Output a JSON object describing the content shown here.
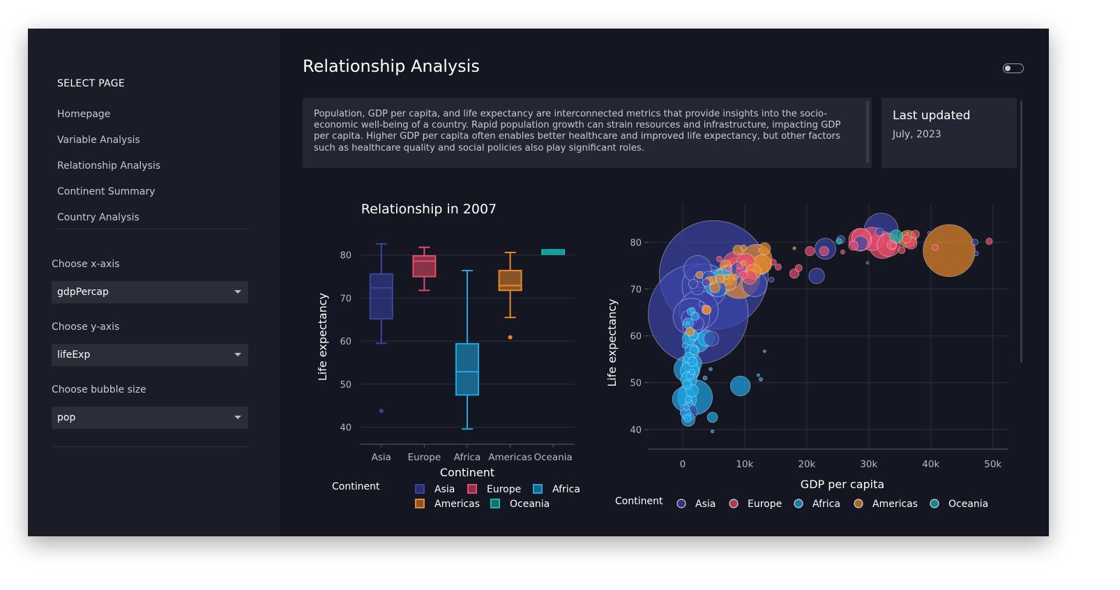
{
  "sidebar": {
    "title": "SELECT PAGE",
    "items": [
      "Homepage",
      "Variable Analysis",
      "Relationship Analysis",
      "Continent Summary",
      "Country Analysis"
    ],
    "x_label": "Choose x-axis",
    "x_value": "gdpPercap",
    "y_label": "Choose y-axis",
    "y_value": "lifeExp",
    "size_label": "Choose bubble size",
    "size_value": "pop"
  },
  "main": {
    "title": "Relationship Analysis",
    "description": "Population, GDP per capita, and life expectancy are interconnected metrics that provide insights into the socio-economic well-being of a country. Rapid population growth can strain resources and infrastructure, impacting GDP per capita. Higher GDP per capita often enables better healthcare and improved life expectancy, but other factors such as healthcare quality and social policies also play significant roles.",
    "updated_title": "Last updated",
    "updated_date": "July, 2023"
  },
  "colors": {
    "Asia": "#3b44a6",
    "Europe": "#e84b6b",
    "Africa": "#1ea6e6",
    "Americas": "#e88a2b",
    "Oceania": "#17b8b0"
  },
  "chart_data": [
    {
      "type": "box",
      "title": "Relationship in 2007",
      "xlabel": "Continent",
      "ylabel": "Life expectancy",
      "ylim": [
        38,
        84
      ],
      "yticks": [
        40,
        50,
        60,
        70,
        80
      ],
      "legend_title": "Continent",
      "series": [
        {
          "name": "Asia",
          "min": 59.5,
          "q1": 65.2,
          "median": 72.4,
          "q3": 75.6,
          "max": 82.6,
          "outliers": [
            43.8
          ]
        },
        {
          "name": "Europe",
          "min": 71.8,
          "q1": 75.0,
          "median": 78.6,
          "q3": 79.8,
          "max": 81.8,
          "outliers": []
        },
        {
          "name": "Africa",
          "min": 39.6,
          "q1": 47.5,
          "median": 52.9,
          "q3": 59.4,
          "max": 76.4,
          "outliers": []
        },
        {
          "name": "Americas",
          "min": 65.5,
          "q1": 71.8,
          "median": 72.9,
          "q3": 76.4,
          "max": 80.6,
          "outliers": [
            60.9
          ]
        },
        {
          "name": "Oceania",
          "min": 80.2,
          "q1": 80.2,
          "median": 80.7,
          "q3": 81.2,
          "max": 81.2,
          "outliers": []
        }
      ]
    },
    {
      "type": "scatter",
      "xlabel": "GDP per capita",
      "ylabel": "Life expectancy",
      "xlim": [
        -5500,
        52500
      ],
      "ylim": [
        37,
        86
      ],
      "xticks": [
        0,
        10000,
        20000,
        30000,
        40000,
        50000
      ],
      "xtick_labels": [
        "0",
        "10k",
        "20k",
        "30k",
        "40k",
        "50k"
      ],
      "yticks": [
        40,
        50,
        60,
        70,
        80
      ],
      "legend_title": "Continent",
      "points": [
        {
          "c": "Asia",
          "x": 5000,
          "y": 73.0,
          "pop": 1318
        },
        {
          "c": "Asia",
          "x": 2500,
          "y": 64.7,
          "pop": 1110
        },
        {
          "c": "Asia",
          "x": 32000,
          "y": 82.6,
          "pop": 127
        },
        {
          "c": "Asia",
          "x": 3500,
          "y": 70.6,
          "pop": 223
        },
        {
          "c": "Asia",
          "x": 1400,
          "y": 64.1,
          "pop": 150
        },
        {
          "c": "Asia",
          "x": 2600,
          "y": 65.5,
          "pop": 169
        },
        {
          "c": "Asia",
          "x": 23000,
          "y": 78.6,
          "pop": 49
        },
        {
          "c": "Asia",
          "x": 11600,
          "y": 71.0,
          "pop": 69
        },
        {
          "c": "Asia",
          "x": 7500,
          "y": 72.5,
          "pop": 65
        },
        {
          "c": "Asia",
          "x": 4600,
          "y": 59.4,
          "pop": 25
        },
        {
          "c": "Asia",
          "x": 21600,
          "y": 72.8,
          "pop": 27
        },
        {
          "c": "Asia",
          "x": 9000,
          "y": 74.2,
          "pop": 24
        },
        {
          "c": "Asia",
          "x": 2400,
          "y": 74.2,
          "pop": 85
        },
        {
          "c": "Asia",
          "x": 5700,
          "y": 70.0,
          "pop": 28
        },
        {
          "c": "Asia",
          "x": 31700,
          "y": 82.2,
          "pop": 7
        },
        {
          "c": "Asia",
          "x": 47100,
          "y": 80.0,
          "pop": 4.5
        },
        {
          "c": "Asia",
          "x": 47300,
          "y": 77.6,
          "pop": 2.5
        },
        {
          "c": "Asia",
          "x": 1000,
          "y": 43.8,
          "pop": 32
        },
        {
          "c": "Asia",
          "x": 4200,
          "y": 72.4,
          "pop": 19
        },
        {
          "c": "Asia",
          "x": 3100,
          "y": 72.0,
          "pop": 28
        },
        {
          "c": "Asia",
          "x": 28700,
          "y": 79.8,
          "pop": 23
        },
        {
          "c": "Asia",
          "x": 1100,
          "y": 63.8,
          "pop": 29
        },
        {
          "c": "Asia",
          "x": 1600,
          "y": 62.1,
          "pop": 47
        },
        {
          "c": "Asia",
          "x": 2400,
          "y": 70.2,
          "pop": 20
        },
        {
          "c": "Asia",
          "x": 39700,
          "y": 82.0,
          "pop": 1
        },
        {
          "c": "Asia",
          "x": 3000,
          "y": 66.8,
          "pop": 3
        },
        {
          "c": "Asia",
          "x": 14300,
          "y": 72.0,
          "pop": 3
        },
        {
          "c": "Asia",
          "x": 29800,
          "y": 75.6,
          "pop": 0.9
        },
        {
          "c": "Asia",
          "x": 25500,
          "y": 80.6,
          "pop": 6.9
        },
        {
          "c": "Asia",
          "x": 3800,
          "y": 71.4,
          "pop": 6.3
        },
        {
          "c": "Asia",
          "x": 1700,
          "y": 71.1,
          "pop": 9.5
        },
        {
          "c": "Asia",
          "x": 12400,
          "y": 79.0,
          "pop": 0.4
        },
        {
          "c": "Asia",
          "x": 2300,
          "y": 62.7,
          "pop": 22
        },
        {
          "c": "Europe",
          "x": 32200,
          "y": 79.4,
          "pop": 82
        },
        {
          "c": "Europe",
          "x": 30500,
          "y": 80.7,
          "pop": 61
        },
        {
          "c": "Europe",
          "x": 33200,
          "y": 79.4,
          "pop": 60
        },
        {
          "c": "Europe",
          "x": 28600,
          "y": 80.5,
          "pop": 58
        },
        {
          "c": "Europe",
          "x": 28800,
          "y": 80.9,
          "pop": 40
        },
        {
          "c": "Europe",
          "x": 8500,
          "y": 75.3,
          "pop": 71
        },
        {
          "c": "Europe",
          "x": 10200,
          "y": 75.6,
          "pop": 38
        },
        {
          "c": "Europe",
          "x": 10800,
          "y": 72.5,
          "pop": 22
        },
        {
          "c": "Europe",
          "x": 36800,
          "y": 79.8,
          "pop": 16
        },
        {
          "c": "Europe",
          "x": 33700,
          "y": 79.4,
          "pop": 10
        },
        {
          "c": "Europe",
          "x": 22800,
          "y": 78.1,
          "pop": 10
        },
        {
          "c": "Europe",
          "x": 27500,
          "y": 79.3,
          "pop": 10
        },
        {
          "c": "Europe",
          "x": 20500,
          "y": 78.1,
          "pop": 10
        },
        {
          "c": "Europe",
          "x": 18000,
          "y": 73.3,
          "pop": 10
        },
        {
          "c": "Europe",
          "x": 9800,
          "y": 73.0,
          "pop": 7
        },
        {
          "c": "Europe",
          "x": 15400,
          "y": 74.7,
          "pop": 4.5
        },
        {
          "c": "Europe",
          "x": 36100,
          "y": 80.7,
          "pop": 8.2
        },
        {
          "c": "Europe",
          "x": 37500,
          "y": 81.7,
          "pop": 7.5
        },
        {
          "c": "Europe",
          "x": 35300,
          "y": 78.3,
          "pop": 5.5
        },
        {
          "c": "Europe",
          "x": 33900,
          "y": 79.3,
          "pop": 5.2
        },
        {
          "c": "Europe",
          "x": 49400,
          "y": 80.2,
          "pop": 4.6
        },
        {
          "c": "Europe",
          "x": 40700,
          "y": 78.9,
          "pop": 4.1
        },
        {
          "c": "Europe",
          "x": 18700,
          "y": 74.5,
          "pop": 5.4
        },
        {
          "c": "Europe",
          "x": 9300,
          "y": 74.0,
          "pop": 7.3
        },
        {
          "c": "Europe",
          "x": 14600,
          "y": 75.7,
          "pop": 4.5
        },
        {
          "c": "Europe",
          "x": 9200,
          "y": 74.9,
          "pop": 3.6
        },
        {
          "c": "Europe",
          "x": 25800,
          "y": 77.9,
          "pop": 2.0
        },
        {
          "c": "Europe",
          "x": 36200,
          "y": 81.8,
          "pop": 0.3
        },
        {
          "c": "Europe",
          "x": 7400,
          "y": 74.5,
          "pop": 4.6
        },
        {
          "c": "Europe",
          "x": 5900,
          "y": 76.4,
          "pop": 3.6
        },
        {
          "c": "Europe",
          "x": 7400,
          "y": 74.9,
          "pop": 0.7
        },
        {
          "c": "Africa",
          "x": 2000,
          "y": 46.9,
          "pop": 135
        },
        {
          "c": "Africa",
          "x": 700,
          "y": 52.9,
          "pop": 76
        },
        {
          "c": "Africa",
          "x": 5600,
          "y": 71.3,
          "pop": 80
        },
        {
          "c": "Africa",
          "x": 280,
          "y": 46.5,
          "pop": 64
        },
        {
          "c": "Africa",
          "x": 9300,
          "y": 49.3,
          "pop": 44
        },
        {
          "c": "Africa",
          "x": 1100,
          "y": 52.5,
          "pop": 38
        },
        {
          "c": "Africa",
          "x": 1500,
          "y": 54.1,
          "pop": 42
        },
        {
          "c": "Africa",
          "x": 6200,
          "y": 72.3,
          "pop": 33
        },
        {
          "c": "Africa",
          "x": 1000,
          "y": 50.7,
          "pop": 29
        },
        {
          "c": "Africa",
          "x": 2600,
          "y": 58.6,
          "pop": 42
        },
        {
          "c": "Africa",
          "x": 1300,
          "y": 60.0,
          "pop": 20
        },
        {
          "c": "Africa",
          "x": 900,
          "y": 42.1,
          "pop": 20
        },
        {
          "c": "Africa",
          "x": 1500,
          "y": 56.7,
          "pop": 23
        },
        {
          "c": "Africa",
          "x": 4800,
          "y": 42.6,
          "pop": 12
        },
        {
          "c": "Africa",
          "x": 3800,
          "y": 59.5,
          "pop": 31
        },
        {
          "c": "Africa",
          "x": 1000,
          "y": 59.4,
          "pop": 19
        },
        {
          "c": "Africa",
          "x": 1500,
          "y": 48.3,
          "pop": 18
        },
        {
          "c": "Africa",
          "x": 1700,
          "y": 60.1,
          "pop": 10
        },
        {
          "c": "Africa",
          "x": 500,
          "y": 43.5,
          "pop": 12
        },
        {
          "c": "Africa",
          "x": 900,
          "y": 62.7,
          "pop": 12
        },
        {
          "c": "Africa",
          "x": 1600,
          "y": 54.5,
          "pop": 10
        },
        {
          "c": "Africa",
          "x": 12600,
          "y": 50.7,
          "pop": 1.5
        },
        {
          "c": "Africa",
          "x": 13200,
          "y": 56.7,
          "pop": 0.6
        },
        {
          "c": "Africa",
          "x": 7100,
          "y": 73.9,
          "pop": 10
        },
        {
          "c": "Africa",
          "x": 4800,
          "y": 39.6,
          "pop": 1.1
        },
        {
          "c": "Africa",
          "x": 12200,
          "y": 51.6,
          "pop": 0.5
        },
        {
          "c": "Africa",
          "x": 1300,
          "y": 65.2,
          "pop": 6
        },
        {
          "c": "Africa",
          "x": 700,
          "y": 49.6,
          "pop": 9
        },
        {
          "c": "Africa",
          "x": 1800,
          "y": 56.9,
          "pop": 9
        },
        {
          "c": "Africa",
          "x": 1000,
          "y": 55.3,
          "pop": 13
        },
        {
          "c": "Africa",
          "x": 4500,
          "y": 52.9,
          "pop": 1.2
        },
        {
          "c": "Africa",
          "x": 900,
          "y": 46.4,
          "pop": 5
        },
        {
          "c": "Africa",
          "x": 1200,
          "y": 51.5,
          "pop": 6
        },
        {
          "c": "Africa",
          "x": 2000,
          "y": 64.2,
          "pop": 8
        },
        {
          "c": "Africa",
          "x": 3600,
          "y": 51.0,
          "pop": 2
        },
        {
          "c": "Africa",
          "x": 600,
          "y": 44.7,
          "pop": 3.9
        },
        {
          "c": "Africa",
          "x": 800,
          "y": 42.4,
          "pop": 6.1
        },
        {
          "c": "Africa",
          "x": 1100,
          "y": 45.7,
          "pop": 5.3
        },
        {
          "c": "Africa",
          "x": 400,
          "y": 58.0,
          "pop": 4.2
        },
        {
          "c": "Africa",
          "x": 1600,
          "y": 65.5,
          "pop": 3.2
        },
        {
          "c": "Africa",
          "x": 800,
          "y": 62.7,
          "pop": 1.1
        },
        {
          "c": "Africa",
          "x": 1500,
          "y": 52.3,
          "pop": 3.7
        },
        {
          "c": "Americas",
          "x": 42950,
          "y": 78.2,
          "pop": 301
        },
        {
          "c": "Americas",
          "x": 9100,
          "y": 72.4,
          "pop": 190
        },
        {
          "c": "Americas",
          "x": 11900,
          "y": 76.2,
          "pop": 109
        },
        {
          "c": "Americas",
          "x": 7000,
          "y": 72.9,
          "pop": 44
        },
        {
          "c": "Americas",
          "x": 12800,
          "y": 75.3,
          "pop": 40
        },
        {
          "c": "Americas",
          "x": 36300,
          "y": 80.7,
          "pop": 33
        },
        {
          "c": "Americas",
          "x": 7400,
          "y": 71.4,
          "pop": 29
        },
        {
          "c": "Americas",
          "x": 11400,
          "y": 73.7,
          "pop": 26
        },
        {
          "c": "Americas",
          "x": 13200,
          "y": 78.6,
          "pop": 16
        },
        {
          "c": "Americas",
          "x": 6900,
          "y": 75.0,
          "pop": 14
        },
        {
          "c": "Americas",
          "x": 5200,
          "y": 70.3,
          "pop": 12
        },
        {
          "c": "Americas",
          "x": 8900,
          "y": 78.3,
          "pop": 11
        },
        {
          "c": "Americas",
          "x": 3800,
          "y": 65.6,
          "pop": 9
        },
        {
          "c": "Americas",
          "x": 6000,
          "y": 72.2,
          "pop": 9
        },
        {
          "c": "Americas",
          "x": 3900,
          "y": 65.5,
          "pop": 8
        },
        {
          "c": "Americas",
          "x": 1200,
          "y": 60.9,
          "pop": 8.5
        },
        {
          "c": "Americas",
          "x": 4800,
          "y": 71.9,
          "pop": 7
        },
        {
          "c": "Americas",
          "x": 2700,
          "y": 73.0,
          "pop": 5.7
        },
        {
          "c": "Americas",
          "x": 9800,
          "y": 78.8,
          "pop": 4.1
        },
        {
          "c": "Americas",
          "x": 9800,
          "y": 75.5,
          "pop": 3.2
        },
        {
          "c": "Americas",
          "x": 4200,
          "y": 71.8,
          "pop": 6.7
        },
        {
          "c": "Americas",
          "x": 18000,
          "y": 78.7,
          "pop": 1.0
        },
        {
          "c": "Americas",
          "x": 8500,
          "y": 72.6,
          "pop": 3.9
        },
        {
          "c": "Americas",
          "x": 7100,
          "y": 72.6,
          "pop": 2.8
        },
        {
          "c": "Oceania",
          "x": 34400,
          "y": 81.2,
          "pop": 20
        },
        {
          "c": "Oceania",
          "x": 25200,
          "y": 80.2,
          "pop": 4.1
        }
      ]
    }
  ]
}
